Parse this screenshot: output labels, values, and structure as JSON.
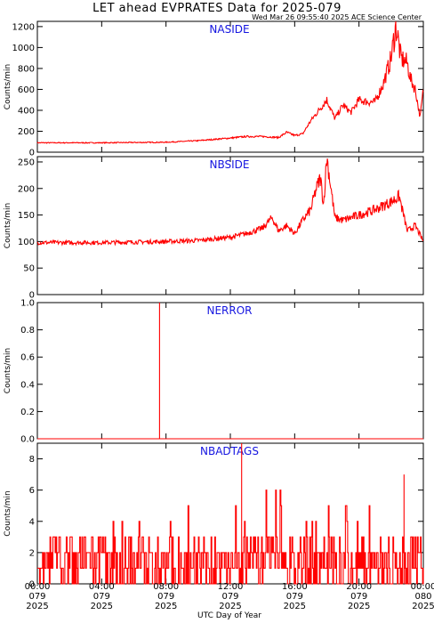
{
  "header": {
    "title": "LET ahead EVPRATES Data for 2025-079",
    "timestamp": "Wed Mar 26 09:55:40 2025 ACE Science Center"
  },
  "x_axis": {
    "label": "UTC Day of Year",
    "ticks": [
      {
        "hours": 0,
        "time": "00:00",
        "doy": "079",
        "year": "2025"
      },
      {
        "hours": 4,
        "time": "04:00",
        "doy": "079",
        "year": "2025"
      },
      {
        "hours": 8,
        "time": "08:00",
        "doy": "079",
        "year": "2025"
      },
      {
        "hours": 12,
        "time": "12:00",
        "doy": "079",
        "year": "2025"
      },
      {
        "hours": 16,
        "time": "16:00",
        "doy": "079",
        "year": "2025"
      },
      {
        "hours": 20,
        "time": "20:00",
        "doy": "079",
        "year": "2025"
      },
      {
        "hours": 24,
        "time": "00:00",
        "doy": "080",
        "year": "2025"
      }
    ]
  },
  "colors": {
    "line": "#ff0000",
    "panel_title": "#1515e0",
    "axes": "#000000"
  },
  "chart_data": [
    {
      "type": "line",
      "title": "NASIDE",
      "ylabel": "Counts/min",
      "xlim": [
        0,
        24
      ],
      "ylim": [
        0,
        1250
      ],
      "yticks": [
        0,
        200,
        400,
        600,
        800,
        1000,
        1200
      ],
      "grid": false,
      "noise": 0.05,
      "x": [
        0,
        4,
        8,
        10,
        12,
        13,
        14,
        15,
        15.5,
        16,
        16.5,
        17,
        17.5,
        18,
        18.5,
        19,
        19.5,
        20,
        20.5,
        21,
        21.5,
        22,
        22.3,
        22.6,
        23,
        23.2,
        23.5,
        23.8,
        24
      ],
      "series": [
        {
          "values": [
            90,
            90,
            95,
            110,
            135,
            150,
            150,
            140,
            190,
            160,
            175,
            300,
            400,
            500,
            320,
            450,
            380,
            500,
            480,
            480,
            650,
            900,
            1220,
            900,
            850,
            700,
            600,
            330,
            600
          ]
        }
      ]
    },
    {
      "type": "line",
      "title": "NBSIDE",
      "ylabel": "Counts/min",
      "xlim": [
        0,
        24
      ],
      "ylim": [
        0,
        260
      ],
      "yticks": [
        0,
        50,
        100,
        150,
        200,
        250
      ],
      "grid": false,
      "noise": 0.04,
      "x": [
        0,
        4,
        8,
        10,
        12,
        13,
        14,
        14.6,
        15,
        15.5,
        16,
        16.5,
        17,
        17.3,
        17.6,
        17.8,
        18,
        18.5,
        19,
        20,
        21,
        22,
        22.5,
        23,
        23.5,
        24
      ],
      "series": [
        {
          "values": [
            98,
            98,
            100,
            102,
            108,
            115,
            125,
            145,
            120,
            130,
            115,
            140,
            160,
            195,
            220,
            170,
            260,
            145,
            140,
            150,
            160,
            175,
            185,
            120,
            130,
            100
          ]
        }
      ]
    },
    {
      "type": "line",
      "title": "NERROR",
      "ylabel": "Counts/min",
      "xlim": [
        0,
        24
      ],
      "ylim": [
        0,
        1
      ],
      "yticks": [
        0.0,
        0.2,
        0.4,
        0.6,
        0.8,
        1.0
      ],
      "grid": false,
      "noise": 0,
      "x": [
        0,
        7.6,
        7.6,
        7.6,
        24
      ],
      "series": [
        {
          "values": [
            0,
            0,
            1,
            0,
            0
          ]
        }
      ]
    },
    {
      "type": "line",
      "title": "NBADTAGS",
      "ylabel": "Counts/min",
      "xlim": [
        0,
        24
      ],
      "ylim": [
        0,
        9
      ],
      "yticks": [
        0,
        2,
        4,
        6,
        8
      ],
      "grid": false,
      "noise": "discrete",
      "x": [
        0,
        12.7,
        12.7,
        12.7,
        22.8,
        22.8,
        22.8,
        24
      ],
      "series": [
        {
          "values": [
            1.5,
            1.5,
            9,
            1.5,
            1.5,
            7,
            1.5,
            1.5
          ]
        }
      ]
    }
  ]
}
